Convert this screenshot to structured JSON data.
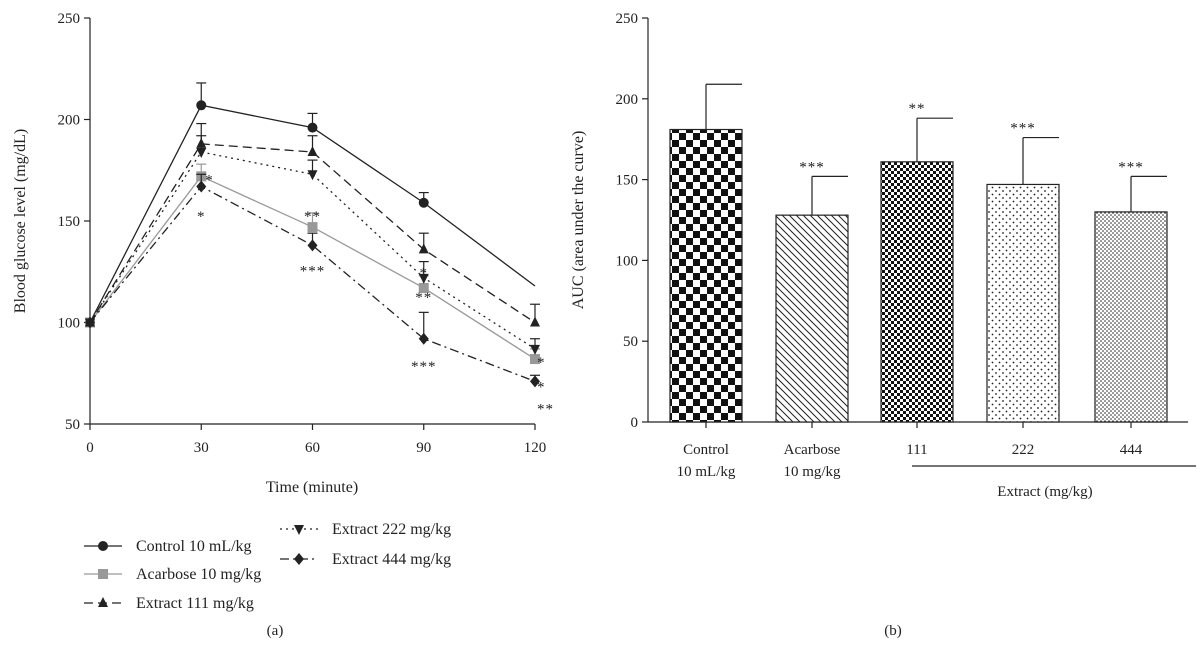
{
  "chart_data": [
    {
      "type": "line",
      "panel_label": "(a)",
      "xlabel": "Time (minute)",
      "ylabel": "Blood glucose level (mg/dL)",
      "x": [
        0,
        30,
        60,
        90,
        120
      ],
      "xlim": [
        0,
        120
      ],
      "ylim": [
        50,
        250
      ],
      "xticks": [
        "0",
        "30",
        "60",
        "90",
        "120"
      ],
      "yticks": [
        "50",
        "100",
        "150",
        "200",
        "250"
      ],
      "grid": false,
      "legend_position": "bottom",
      "series": [
        {
          "name": "Control 10 mL/kg",
          "marker": "circle",
          "dash": "solid",
          "color": "#222222",
          "values": [
            100,
            207,
            196,
            159,
            118
          ],
          "err": [
            0,
            11,
            7,
            5,
            0
          ]
        },
        {
          "name": "Acarbose 10 mg/kg",
          "marker": "square",
          "dash": "solid",
          "color": "#999999",
          "values": [
            100,
            172,
            147,
            117,
            82
          ],
          "err": [
            0,
            6,
            7,
            6,
            5
          ]
        },
        {
          "name": "Extract 111 mg/kg",
          "marker": "triangle-up",
          "dash": "dashed",
          "color": "#222222",
          "values": [
            100,
            188,
            184,
            136,
            100
          ],
          "err": [
            0,
            10,
            8,
            8,
            9
          ]
        },
        {
          "name": "Extract 222 mg/kg",
          "marker": "triangle-down",
          "dash": "dotdot",
          "color": "#222222",
          "values": [
            100,
            184,
            173,
            122,
            87
          ],
          "err": [
            0,
            8,
            7,
            8,
            5
          ]
        },
        {
          "name": "Extract 444 mg/kg",
          "marker": "diamond",
          "dash": "dashdot",
          "color": "#222222",
          "values": [
            100,
            167,
            138,
            92,
            71
          ],
          "err": [
            0,
            6,
            6,
            13,
            3
          ]
        }
      ],
      "annotations": [
        {
          "text": "*",
          "x": 30,
          "y": 172
        },
        {
          "text": "*",
          "x": 30,
          "y": 154
        },
        {
          "text": "**",
          "x": 60,
          "y": 154
        },
        {
          "text": "***",
          "x": 60,
          "y": 127
        },
        {
          "text": "*",
          "x": 90,
          "y": 126
        },
        {
          "text": "**",
          "x": 90,
          "y": 114
        },
        {
          "text": "***",
          "x": 90,
          "y": 80
        },
        {
          "text": "*",
          "x": 120,
          "y": 82
        },
        {
          "text": "*",
          "x": 120,
          "y": 70
        },
        {
          "text": "**",
          "x": 120,
          "y": 59
        }
      ]
    },
    {
      "type": "bar",
      "panel_label": "(b)",
      "ylabel": "AUC (area under the curve)",
      "ylim": [
        0,
        250
      ],
      "yticks": [
        "0",
        "50",
        "100",
        "150",
        "200",
        "250"
      ],
      "grid": false,
      "categories": [
        {
          "line1": "Control",
          "line2": "10 mL/kg"
        },
        {
          "line1": "Acarbose",
          "line2": "10 mg/kg"
        },
        {
          "line1": "111",
          "line2": ""
        },
        {
          "line1": "222",
          "line2": ""
        },
        {
          "line1": "444",
          "line2": ""
        }
      ],
      "group_label": "Extract (mg/kg)",
      "values": [
        181,
        128,
        161,
        147,
        130
      ],
      "err": [
        28,
        24,
        27,
        29,
        22
      ],
      "patterns": [
        "checker",
        "diagonal",
        "fine-checker",
        "sparse-dots",
        "dense-dots"
      ],
      "significance": [
        "",
        "***",
        "**",
        "***",
        "***"
      ]
    }
  ]
}
